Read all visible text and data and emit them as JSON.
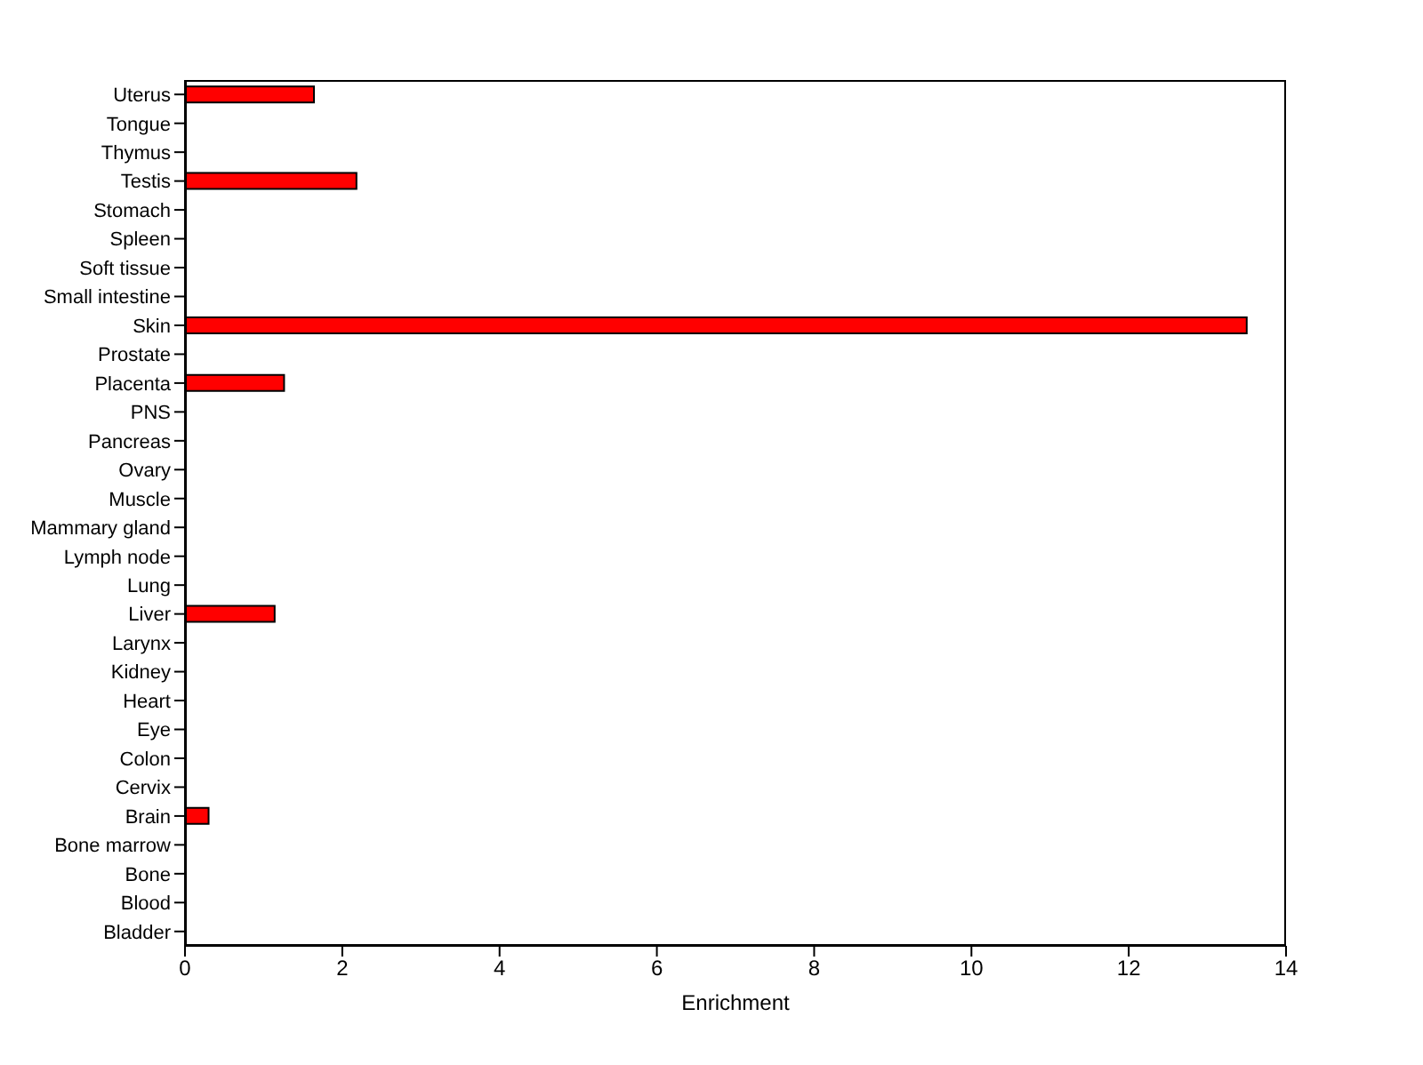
{
  "chart_data": {
    "type": "bar",
    "orientation": "horizontal",
    "xlabel": "Enrichment",
    "categories": [
      "Uterus",
      "Tongue",
      "Thymus",
      "Testis",
      "Stomach",
      "Spleen",
      "Soft tissue",
      "Small intestine",
      "Skin",
      "Prostate",
      "Placenta",
      "PNS",
      "Pancreas",
      "Ovary",
      "Muscle",
      "Mammary gland",
      "Lymph node",
      "Lung",
      "Liver",
      "Larynx",
      "Kidney",
      "Heart",
      "Eye",
      "Colon",
      "Cervix",
      "Brain",
      "Bone marrow",
      "Bone",
      "Blood",
      "Bladder"
    ],
    "values": [
      1.64,
      0,
      0,
      2.18,
      0,
      0,
      0,
      0,
      13.5,
      0,
      1.26,
      0,
      0,
      0,
      0,
      0,
      0,
      0,
      1.14,
      0,
      0,
      0,
      0,
      0,
      0,
      0.3,
      0,
      0,
      0,
      0
    ],
    "color": "#ff0000",
    "xlim": [
      0,
      14
    ],
    "xticks": [
      0,
      2,
      4,
      6,
      8,
      10,
      12,
      14
    ],
    "grid": false,
    "legend": false
  }
}
